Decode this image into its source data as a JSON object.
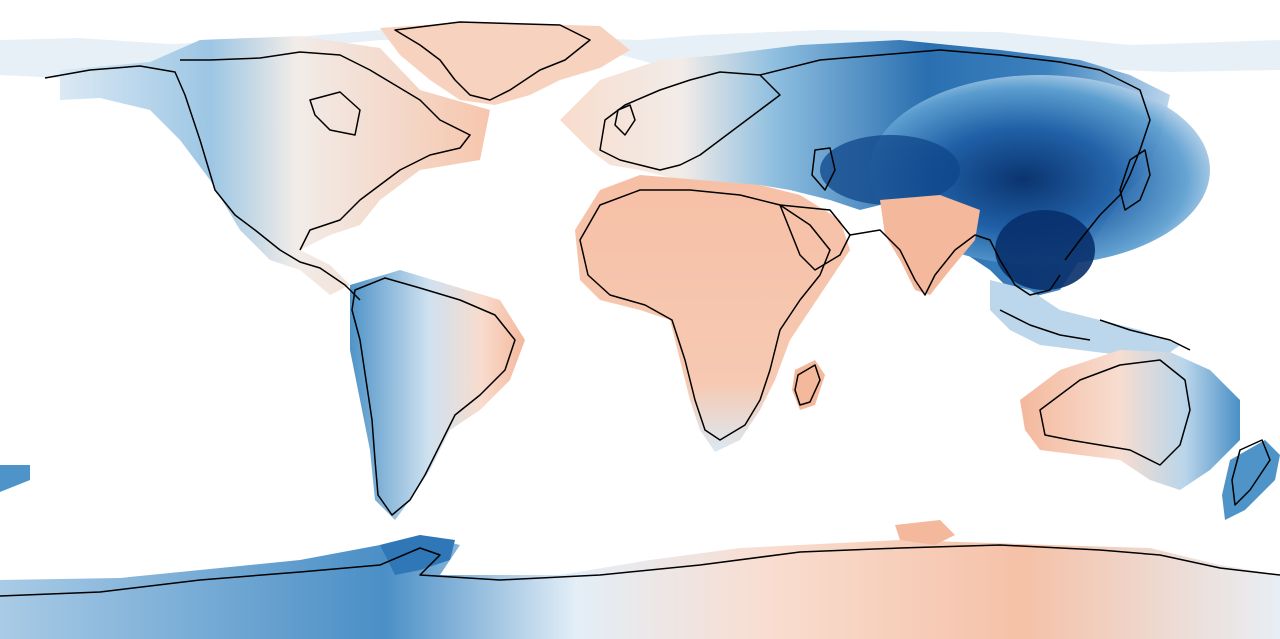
{
  "map": {
    "projection": "equirectangular",
    "variable": "anomaly",
    "background": "#ffffff",
    "palette": {
      "negative_strong": "#08306b",
      "negative_mid": "#2171b5",
      "negative_light": "#6baed6",
      "negative_faint": "#c6dbef",
      "neutral": "#f0f3f6",
      "positive_faint": "#fbe3d6",
      "positive_mid": "#f4b89c",
      "coastline": "#000000"
    },
    "regions": [
      {
        "name": "north-america",
        "tone": "mixed-pale-blue-west-orange-east"
      },
      {
        "name": "greenland",
        "tone": "pale-orange"
      },
      {
        "name": "south-america",
        "tone": "blue-west-orange-east"
      },
      {
        "name": "europe",
        "tone": "pale-orange"
      },
      {
        "name": "africa",
        "tone": "orange"
      },
      {
        "name": "central-asia",
        "tone": "dark-blue"
      },
      {
        "name": "east-asia",
        "tone": "very-dark-blue"
      },
      {
        "name": "india",
        "tone": "orange"
      },
      {
        "name": "southeast-asia",
        "tone": "light-blue"
      },
      {
        "name": "australia",
        "tone": "orange-west-blue-east"
      },
      {
        "name": "new-zealand",
        "tone": "blue"
      },
      {
        "name": "antarctica",
        "tone": "blue-west-orange-east"
      }
    ]
  }
}
